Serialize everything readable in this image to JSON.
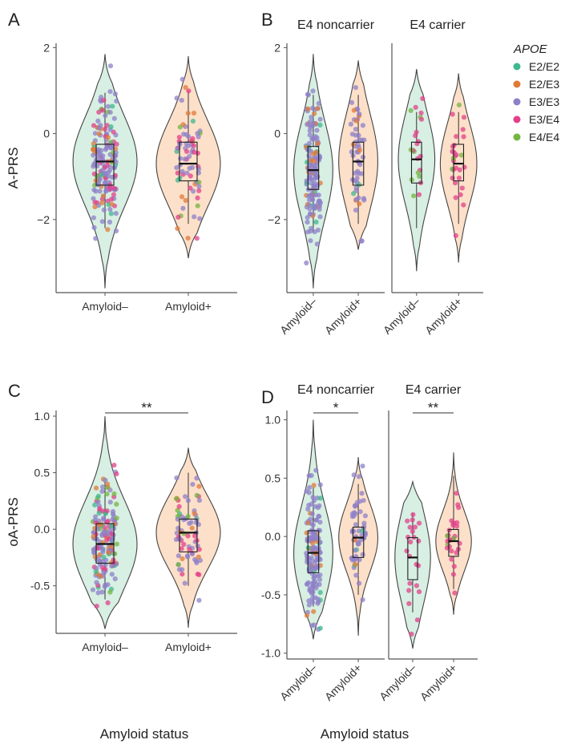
{
  "figure": {
    "x_axis_title": "Amyloid status",
    "legend": {
      "title": "APOE",
      "entries": [
        {
          "label": "E2/E2",
          "color": "#3DB88F"
        },
        {
          "label": "E2/E3",
          "color": "#E07B39"
        },
        {
          "label": "E3/E3",
          "color": "#8E80C8"
        },
        {
          "label": "E3/E4",
          "color": "#E2408A"
        },
        {
          "label": "E4/E4",
          "color": "#73B640"
        }
      ]
    },
    "group_fill": {
      "Amyloid–": "#d8efe3",
      "Amyloid+": "#fde0c9"
    }
  },
  "chart_data": [
    {
      "panel": "A",
      "type": "violin",
      "ylabel": "A-PRS",
      "ylim": [
        -3.7,
        2.1
      ],
      "yticks": [
        2,
        0,
        -2
      ],
      "ytick_labels": [
        "2",
        "0",
        "−2"
      ],
      "categories": [
        "Amyloid–",
        "Amyloid+"
      ],
      "facets": [
        {
          "label": "",
          "groups": [
            {
              "category": "Amyloid–",
              "min": -3.6,
              "max": 1.85,
              "q1": -1.2,
              "median": -0.65,
              "q3": -0.25,
              "whisker_low": -2.2,
              "whisker_high": 0.95,
              "n_points": 170
            },
            {
              "category": "Amyloid+",
              "min": -2.9,
              "max": 1.8,
              "q1": -1.1,
              "median": -0.7,
              "q3": -0.2,
              "whisker_low": -2.1,
              "whisker_high": 1.0,
              "n_points": 75
            }
          ]
        }
      ],
      "significance": []
    },
    {
      "panel": "B",
      "type": "violin",
      "ylabel": "",
      "ylim": [
        -3.7,
        2.1
      ],
      "yticks": [
        2,
        0,
        -2
      ],
      "ytick_labels": [
        "2",
        "0",
        "−2"
      ],
      "categories": [
        "Amyloid–",
        "Amyloid+"
      ],
      "facets": [
        {
          "label": "E4 noncarrier",
          "groups": [
            {
              "category": "Amyloid–",
              "min": -3.6,
              "max": 1.85,
              "q1": -1.3,
              "median": -0.85,
              "q3": -0.3,
              "whisker_low": -2.3,
              "whisker_high": 0.9,
              "n_points": 150
            },
            {
              "category": "Amyloid+",
              "min": -2.7,
              "max": 1.7,
              "q1": -1.2,
              "median": -0.65,
              "q3": -0.2,
              "whisker_low": -2.1,
              "whisker_high": 0.9,
              "n_points": 55
            }
          ]
        },
        {
          "label": "E4 carrier",
          "groups": [
            {
              "category": "Amyloid–",
              "min": -3.2,
              "max": 1.5,
              "q1": -1.15,
              "median": -0.6,
              "q3": -0.2,
              "whisker_low": -2.2,
              "whisker_high": 0.5,
              "n_points": 22
            },
            {
              "category": "Amyloid+",
              "min": -3.0,
              "max": 1.4,
              "q1": -1.1,
              "median": -0.7,
              "q3": -0.25,
              "whisker_low": -2.1,
              "whisker_high": 0.5,
              "n_points": 28
            }
          ]
        }
      ],
      "significance": []
    },
    {
      "panel": "C",
      "type": "violin",
      "ylabel": "oA-PRS",
      "ylim": [
        -0.92,
        1.05
      ],
      "yticks": [
        1.0,
        0.5,
        0.0,
        -0.5
      ],
      "ytick_labels": [
        "1.0",
        "0.5",
        "0.0",
        "-0.5"
      ],
      "categories": [
        "Amyloid–",
        "Amyloid+"
      ],
      "facets": [
        {
          "label": "",
          "groups": [
            {
              "category": "Amyloid–",
              "min": -0.88,
              "max": 1.0,
              "q1": -0.3,
              "median": -0.13,
              "q3": 0.05,
              "whisker_low": -0.62,
              "whisker_high": 0.42,
              "n_points": 170
            },
            {
              "category": "Amyloid+",
              "min": -0.87,
              "max": 0.72,
              "q1": -0.2,
              "median": -0.03,
              "q3": 0.09,
              "whisker_low": -0.5,
              "whisker_high": 0.5,
              "n_points": 75
            }
          ]
        }
      ],
      "significance": [
        {
          "facet": 0,
          "label": "**"
        }
      ]
    },
    {
      "panel": "D",
      "type": "violin",
      "ylabel": "",
      "ylim": [
        -1.05,
        1.08
      ],
      "yticks": [
        1.0,
        0.5,
        0.0,
        -0.5,
        -1.0
      ],
      "ytick_labels": [
        "1.0",
        "0.5",
        "0.0",
        "-0.5",
        "-1.0"
      ],
      "categories": [
        "Amyloid–",
        "Amyloid+"
      ],
      "facets": [
        {
          "label": "E4 noncarrier",
          "groups": [
            {
              "category": "Amyloid–",
              "min": -0.88,
              "max": 1.0,
              "q1": -0.31,
              "median": -0.14,
              "q3": 0.05,
              "whisker_low": -0.6,
              "whisker_high": 0.42,
              "n_points": 150
            },
            {
              "category": "Amyloid+",
              "min": -0.85,
              "max": 0.68,
              "q1": -0.18,
              "median": -0.01,
              "q3": 0.08,
              "whisker_low": -0.5,
              "whisker_high": 0.45,
              "n_points": 55
            }
          ]
        },
        {
          "label": "E4 carrier",
          "groups": [
            {
              "category": "Amyloid–",
              "min": -0.96,
              "max": 0.47,
              "q1": -0.37,
              "median": -0.18,
              "q3": -0.01,
              "whisker_low": -0.65,
              "whisker_high": 0.2,
              "n_points": 22
            },
            {
              "category": "Amyloid+",
              "min": -0.67,
              "max": 0.72,
              "q1": -0.17,
              "median": -0.04,
              "q3": 0.06,
              "whisker_low": -0.45,
              "whisker_high": 0.52,
              "n_points": 28
            }
          ]
        }
      ],
      "significance": [
        {
          "facet": 0,
          "label": "*"
        },
        {
          "facet": 1,
          "label": "**"
        }
      ]
    }
  ]
}
